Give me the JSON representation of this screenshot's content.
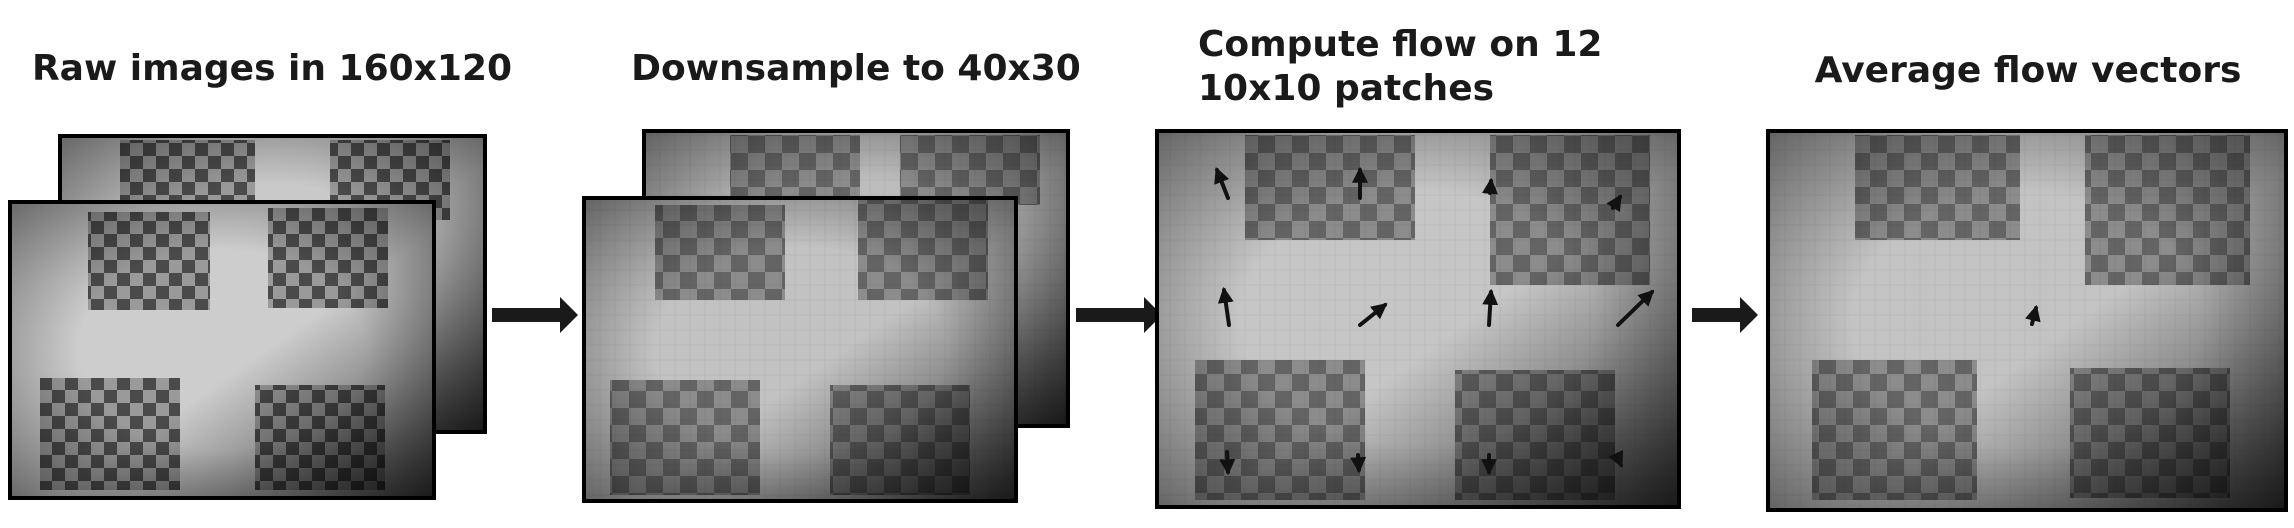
{
  "stages": [
    {
      "title_lines": [
        "Raw images in 160x120"
      ]
    },
    {
      "title_lines": [
        "Downsample to 40x30"
      ]
    },
    {
      "title_lines": [
        "Compute flow on 12",
        "10x10 patches"
      ]
    },
    {
      "title_lines": [
        "Average flow vectors"
      ]
    }
  ]
}
